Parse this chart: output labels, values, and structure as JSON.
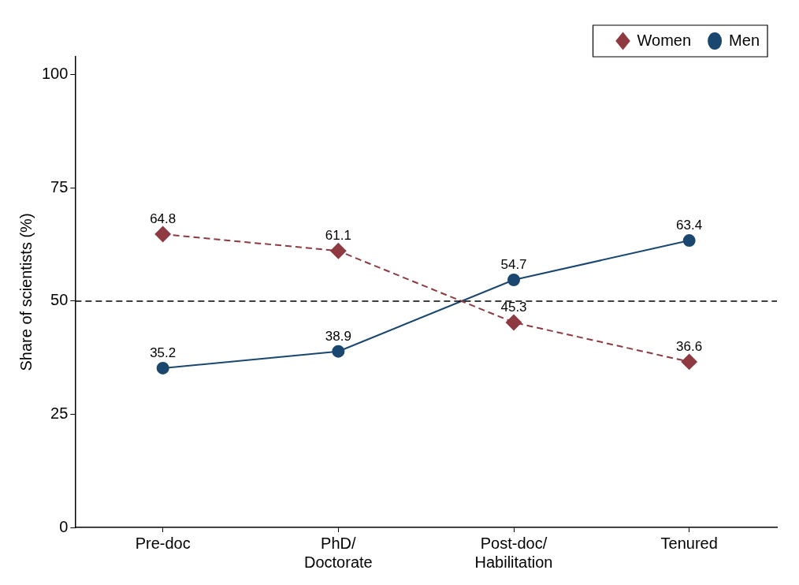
{
  "chart_data": {
    "type": "line",
    "categories": [
      "Pre-doc",
      "PhD/\nDoctorate",
      "Post-doc/\nHabilitation",
      "Tenured"
    ],
    "ylabel": "Share of scientists (%)",
    "series": [
      {
        "name": "Women",
        "color": "#8e3a40",
        "values": [
          64.8,
          61.1,
          45.3,
          36.6
        ],
        "marker": "diamond",
        "line_style": "dashed"
      },
      {
        "name": "Men",
        "color": "#1a476f",
        "values": [
          35.2,
          38.9,
          54.7,
          63.4
        ],
        "marker": "circle",
        "line_style": "solid"
      }
    ],
    "ylim": [
      0,
      104
    ],
    "yticks": [
      0,
      25,
      50,
      75,
      100
    ],
    "ref_lines": [
      {
        "axis": "y",
        "value": 50,
        "color": "#000000",
        "line_style": "dashed"
      }
    ],
    "data_labels": true,
    "grid": false,
    "legend": "top right"
  }
}
